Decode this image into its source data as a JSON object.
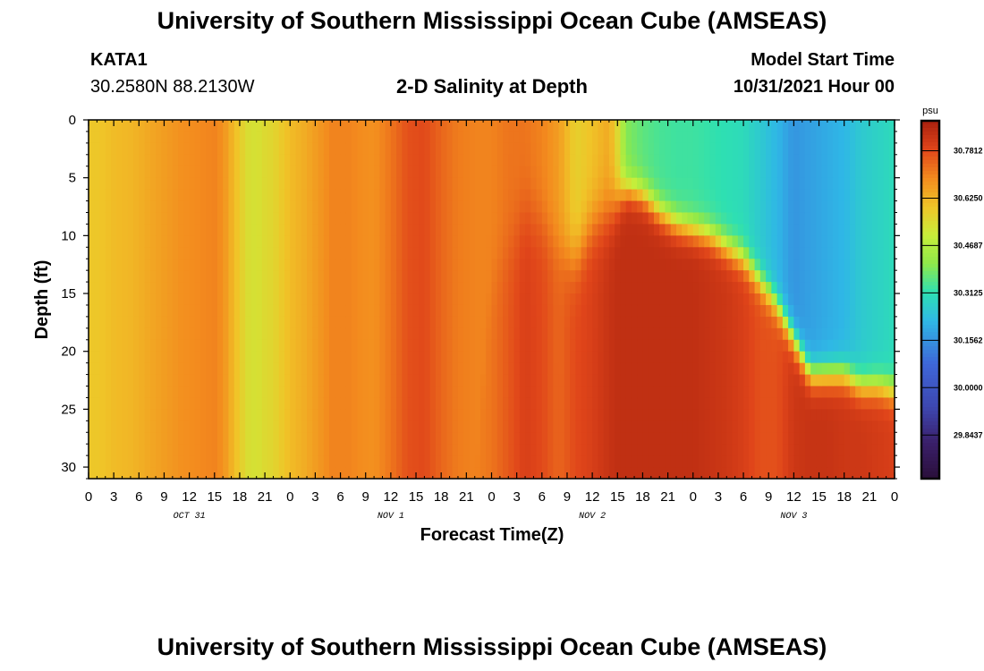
{
  "header": {
    "title": "University of Southern Mississippi Ocean Cube (AMSEAS)",
    "station": "KATA1",
    "coords": "30.2580N  88.2130W",
    "product": "2-D Salinity at Depth",
    "model_start_label": "Model Start Time",
    "model_start_value": "10/31/2021 Hour 00"
  },
  "footer": {
    "title": "University of Southern Mississippi Ocean Cube (AMSEAS)"
  },
  "colors": {
    "axis": "#000000",
    "background": "#ffffff"
  },
  "chart_data": {
    "type": "heatmap",
    "xlabel": "Forecast Time(Z)",
    "ylabel": "Depth (ft)",
    "x_ticks": [
      "0",
      "3",
      "6",
      "9",
      "12",
      "15",
      "18",
      "21",
      "0",
      "3",
      "6",
      "9",
      "12",
      "15",
      "18",
      "21",
      "0",
      "3",
      "6",
      "9",
      "12",
      "15",
      "18",
      "21",
      "0",
      "3",
      "6",
      "9",
      "12",
      "15",
      "18",
      "21",
      "0"
    ],
    "xlim_hours": [
      0,
      96
    ],
    "day_labels": [
      {
        "label": "OCT 31",
        "hour": 12
      },
      {
        "label": "NOV 1",
        "hour": 36
      },
      {
        "label": "NOV 2",
        "hour": 60
      },
      {
        "label": "NOV 3",
        "hour": 84
      }
    ],
    "y_ticks": [
      "0",
      "5",
      "10",
      "15",
      "20",
      "25",
      "30"
    ],
    "ylim_ft": [
      0,
      31
    ],
    "colorbar": {
      "unit": "psu",
      "range": [
        29.7,
        30.88
      ],
      "labels": [
        "30.7812",
        "30.6250",
        "30.4687",
        "30.3125",
        "30.1562",
        "30.0000",
        "29.8437"
      ],
      "stops": [
        [
          0.0,
          "#2a0f3a"
        ],
        [
          0.1,
          "#3a1f6a"
        ],
        [
          0.2,
          "#3d47b0"
        ],
        [
          0.32,
          "#3e66d8"
        ],
        [
          0.44,
          "#2fb7e6"
        ],
        [
          0.52,
          "#2ee0b2"
        ],
        [
          0.6,
          "#8ee84a"
        ],
        [
          0.68,
          "#c8ee3a"
        ],
        [
          0.76,
          "#f0c428"
        ],
        [
          0.84,
          "#f38a1e"
        ],
        [
          0.92,
          "#e0451a"
        ],
        [
          1.0,
          "#a8200e"
        ]
      ]
    },
    "profile_hours": [
      0,
      1,
      3,
      5,
      7,
      9,
      11,
      13,
      15,
      16,
      17,
      18,
      19,
      20,
      21,
      22,
      24,
      26,
      27,
      28,
      29,
      30,
      31,
      32,
      34,
      36,
      38,
      40,
      42,
      44,
      46,
      48,
      50,
      52,
      54,
      56,
      58,
      60,
      62,
      63,
      64,
      66,
      68,
      70,
      72,
      74,
      76,
      78,
      80,
      82,
      84,
      86,
      88,
      90,
      92,
      94,
      96
    ],
    "surface_salinity": [
      30.59,
      30.59,
      30.61,
      30.62,
      30.64,
      30.66,
      30.68,
      30.69,
      30.7,
      30.68,
      30.63,
      30.58,
      30.54,
      30.53,
      30.55,
      30.56,
      30.61,
      30.64,
      30.66,
      30.68,
      30.7,
      30.7,
      30.7,
      30.69,
      30.68,
      30.72,
      30.77,
      30.78,
      30.74,
      30.71,
      30.7,
      30.7,
      30.72,
      30.72,
      30.7,
      30.66,
      30.57,
      30.6,
      30.64,
      30.55,
      30.4,
      30.36,
      30.34,
      30.33,
      30.33,
      30.32,
      30.31,
      30.3,
      30.26,
      30.22,
      30.16,
      30.18,
      30.2,
      30.22,
      30.26,
      30.28,
      30.3
    ],
    "bottom_salinity": [
      30.59,
      30.59,
      30.61,
      30.62,
      30.64,
      30.66,
      30.68,
      30.69,
      30.7,
      30.68,
      30.63,
      30.58,
      30.54,
      30.53,
      30.55,
      30.56,
      30.61,
      30.64,
      30.66,
      30.68,
      30.7,
      30.7,
      30.7,
      30.69,
      30.68,
      30.72,
      30.77,
      30.78,
      30.74,
      30.71,
      30.7,
      30.72,
      30.76,
      30.8,
      30.78,
      30.74,
      30.78,
      30.8,
      30.83,
      30.84,
      30.84,
      30.84,
      30.84,
      30.84,
      30.84,
      30.83,
      30.82,
      30.8,
      30.77,
      30.77,
      30.82,
      30.83,
      30.83,
      30.82,
      30.82,
      30.81,
      30.8
    ],
    "halocline_ft": [
      31,
      31,
      31,
      31,
      31,
      31,
      31,
      31,
      31,
      31,
      31,
      31,
      31,
      31,
      31,
      31,
      31,
      31,
      31,
      31,
      31,
      31,
      31,
      31,
      31,
      31,
      31,
      31,
      31,
      31,
      31,
      14,
      11,
      8,
      9,
      11,
      12,
      9,
      8,
      7,
      6,
      6.5,
      8,
      9,
      9.5,
      10,
      11,
      12,
      14,
      16,
      19,
      22,
      22,
      22,
      23,
      23,
      23.5
    ],
    "halocline_width_ft": [
      1,
      1,
      1,
      1,
      1,
      1,
      1,
      1,
      1,
      1,
      1,
      1,
      1,
      1,
      1,
      1,
      1,
      1,
      1,
      1,
      1,
      1,
      1,
      1,
      1,
      1,
      1,
      1,
      1,
      1,
      1,
      4,
      5,
      5,
      4,
      4,
      4,
      4,
      4,
      3,
      2,
      2,
      2,
      2,
      2,
      2,
      2,
      2,
      2,
      2,
      2,
      2,
      2,
      2,
      2,
      2,
      2
    ]
  }
}
